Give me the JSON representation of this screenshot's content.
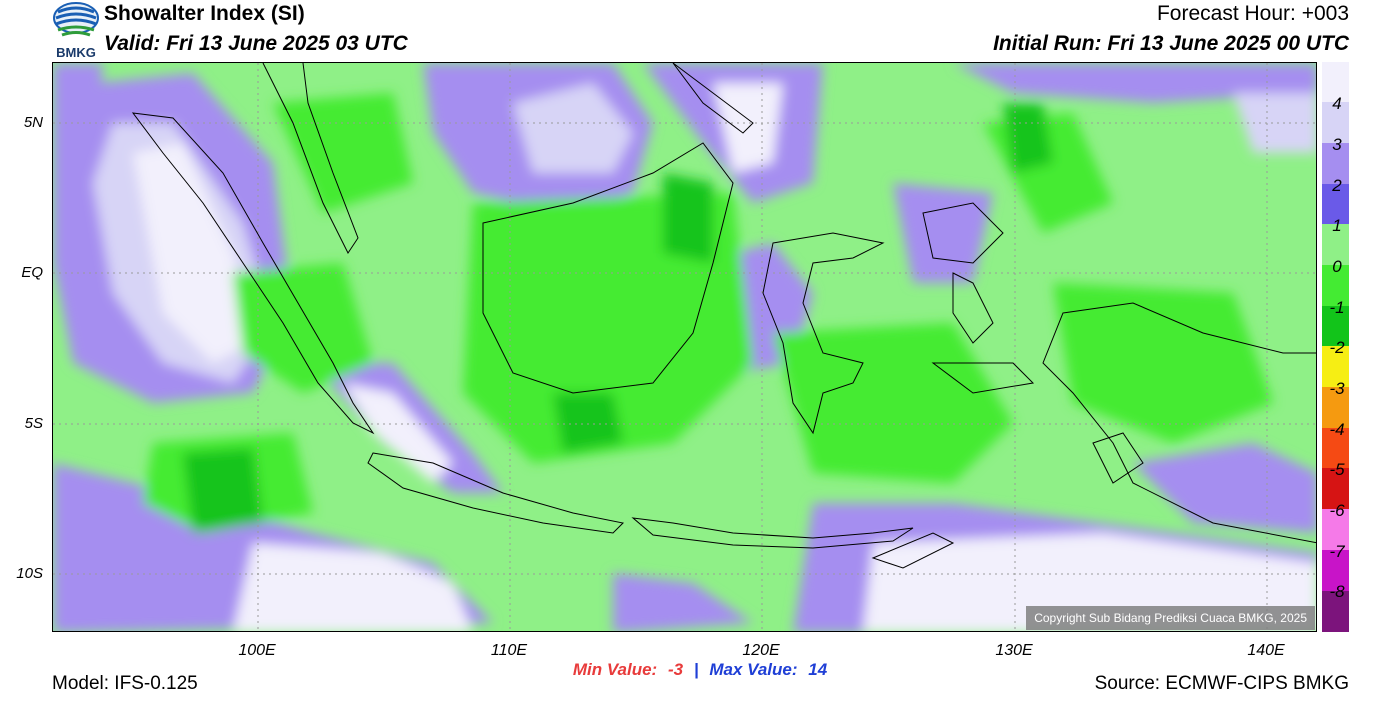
{
  "header": {
    "title": "Showalter Index (SI)",
    "valid": "Valid: Fri 13 June 2025 03 UTC",
    "forecast_hour": "Forecast Hour: +003",
    "initial_run": "Initial Run: Fri 13 June 2025 00 UTC"
  },
  "logo": {
    "text": "BMKG"
  },
  "map": {
    "lat_labels": [
      "5N",
      "EQ",
      "5S",
      "10S"
    ],
    "lon_labels": [
      "100E",
      "110E",
      "120E",
      "130E",
      "140E"
    ],
    "copyright": "Copyright Sub Bidang Prediksi Cuaca BMKG, 2025"
  },
  "colorbar": {
    "labels": [
      "4",
      "3",
      "2",
      "1",
      "0",
      "-1",
      "-2",
      "-3",
      "-4",
      "-5",
      "-6",
      "-7",
      "-8"
    ],
    "colors": [
      "#f2f0fc",
      "#d7d4f6",
      "#a58ef0",
      "#6a5ae8",
      "#8ff087",
      "#44eb33",
      "#12c41a",
      "#f6ee14",
      "#f59a10",
      "#f54a14",
      "#d61414",
      "#f57ae8",
      "#c814c8",
      "#7c147c"
    ]
  },
  "footer": {
    "min_label": "Min Value:",
    "min_value": "-3",
    "separator": "|",
    "max_label": "Max Value:",
    "max_value": "14",
    "model": "Model: IFS-0.125",
    "source": "Source: ECMWF-CIPS BMKG"
  }
}
